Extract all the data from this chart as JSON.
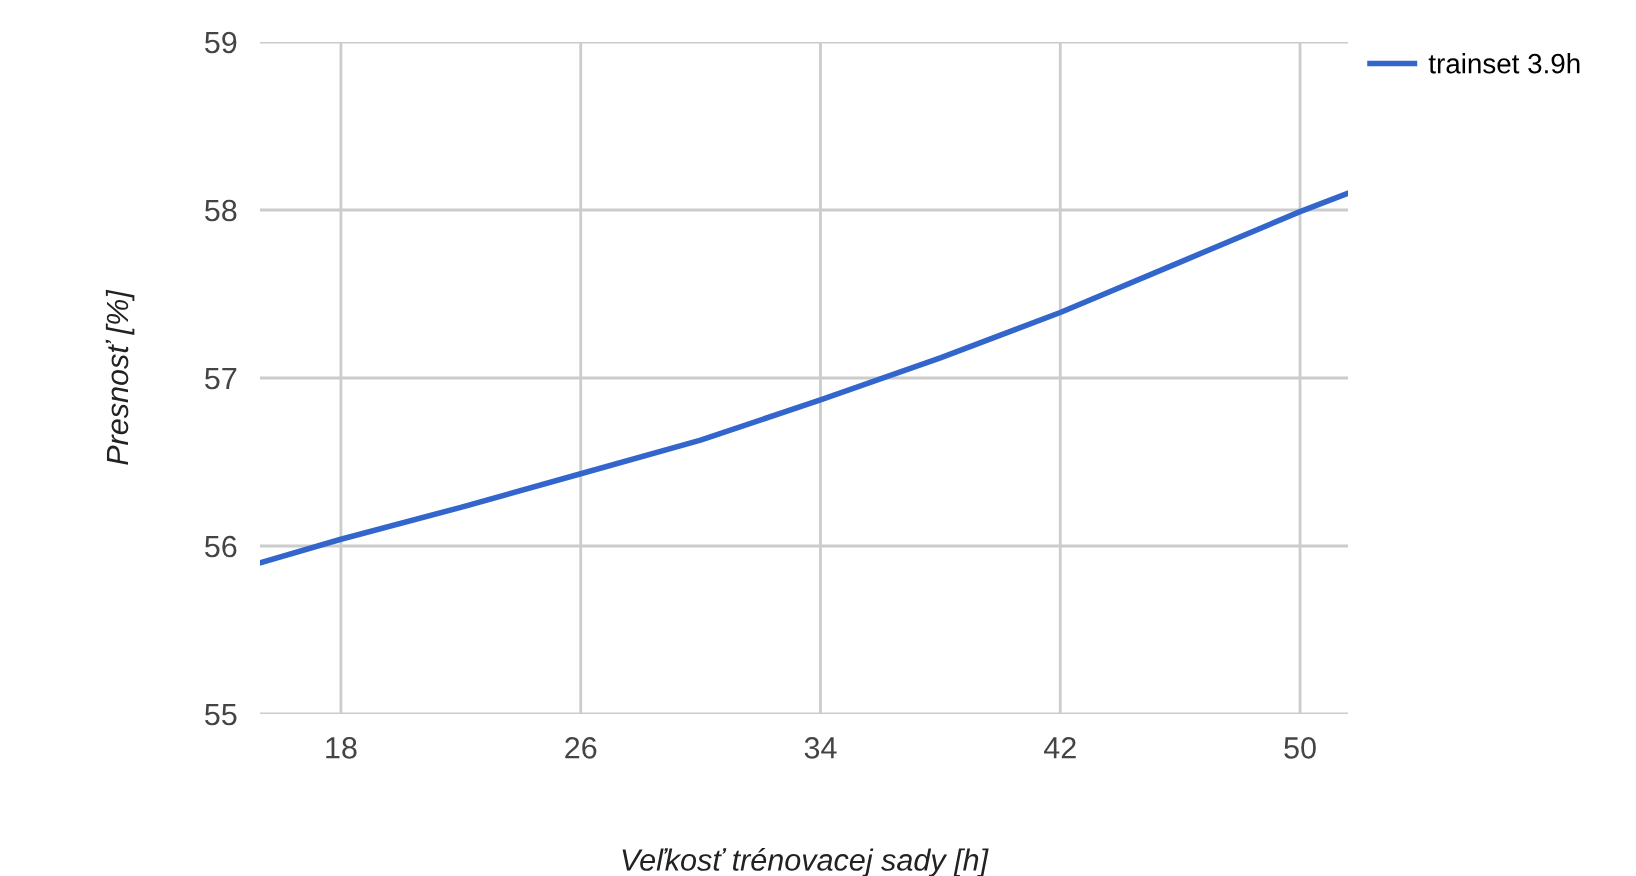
{
  "chart_data": {
    "type": "line",
    "xlabel": "Veľkosť trénovacej sady [h]",
    "ylabel": "Presnosť [%]",
    "x": [
      15.3,
      18,
      22,
      26,
      30,
      34,
      38,
      42,
      46,
      50,
      51.6
    ],
    "series": [
      {
        "name": "trainset 3.9h",
        "color": "#3366cc",
        "values": [
          55.9,
          56.04,
          56.23,
          56.43,
          56.63,
          56.87,
          57.12,
          57.39,
          57.69,
          57.99,
          58.1
        ]
      }
    ],
    "xlim": [
      15.3,
      51.6
    ],
    "ylim": [
      55,
      59
    ],
    "xticks": [
      18,
      26,
      34,
      42,
      50
    ],
    "yticks": [
      55,
      56,
      57,
      58,
      59
    ],
    "grid": true,
    "legend": "top right",
    "marker": "none",
    "line_style": "solid"
  }
}
